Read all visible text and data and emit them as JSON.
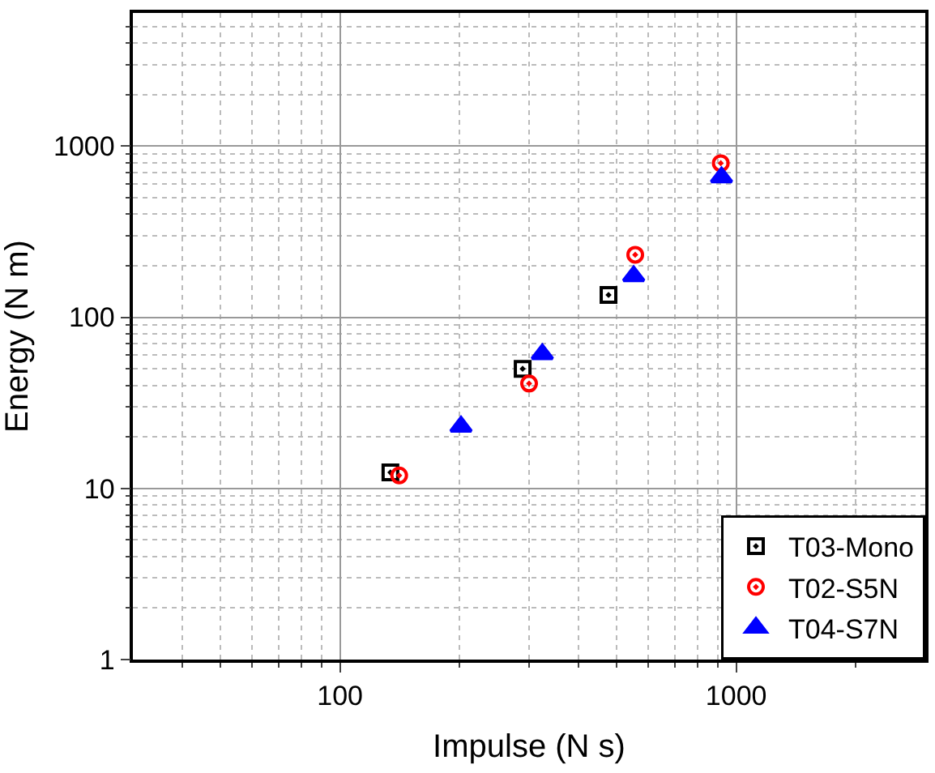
{
  "chart_data": {
    "type": "scatter",
    "xlabel": "Impulse (N s)",
    "ylabel": "Energy (N m)",
    "log": "xy",
    "grid": true,
    "legend": "bottom right",
    "xlim": [
      30,
      3000
    ],
    "xticks": [
      100,
      1000
    ],
    "ylim": [
      1,
      6000
    ],
    "yticks": [
      1,
      10,
      100,
      1000
    ],
    "series": [
      {
        "name": "T03-Mono",
        "color": "#000000",
        "marker": "square",
        "x": [
          134,
          289,
          476
        ],
        "values": [
          12.4,
          50,
          135
        ]
      },
      {
        "name": "T02-S5N",
        "color": "#ff0000",
        "marker": "circle",
        "x": [
          141,
          300,
          556,
          914
        ],
        "values": [
          11.9,
          41,
          232,
          795
        ]
      },
      {
        "name": "T04-S7N",
        "color": "#0000ff",
        "marker": "triangle",
        "x": [
          202,
          324,
          551,
          918
        ],
        "values": [
          23,
          61,
          174,
          658
        ]
      }
    ]
  }
}
